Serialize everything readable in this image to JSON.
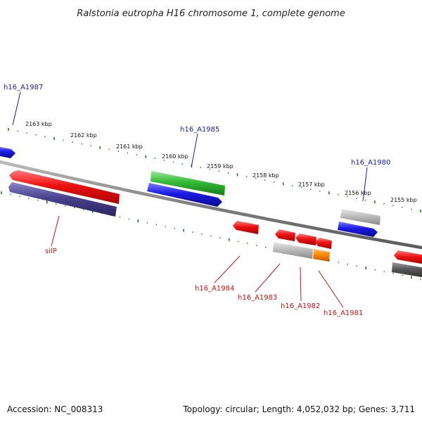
{
  "title": "Ralstonia eutropha H16 chromosome 1, complete genome",
  "footer": {
    "accession": "Accession: NC_008313",
    "topology": "Topology: circular; Length: 4,052,032 bp; Genes: 3,711"
  },
  "ticks": [
    "2163 kbp",
    "2162 kbp",
    "2161 kbp",
    "2160 kbp",
    "2159 kbp",
    "2158 kbp",
    "2157 kbp",
    "2156 kbp",
    "2155 kbp"
  ],
  "gene_labels": {
    "h16_A1987": "h16_A1987",
    "h16_A1985": "h16_A1985",
    "h16_A1980": "h16_A1980",
    "silP": "silP",
    "h16_A1984": "h16_A1984",
    "h16_A1983": "h16_A1983",
    "h16_A1982": "h16_A1982",
    "h16_A1981": "h16_A1981"
  },
  "colors": {
    "forward_label": "#1a1aa8",
    "reverse_label": "#cc1111",
    "red": "#ee1111",
    "blue": "#1a1ae6",
    "green": "#33bb33",
    "navy": "#4a4290",
    "grey": "#b8b8b8",
    "dark_grey": "#555555",
    "orange": "#ff8800",
    "tick_green": "#1f7a1f",
    "backbone": "#8a8a8a"
  }
}
